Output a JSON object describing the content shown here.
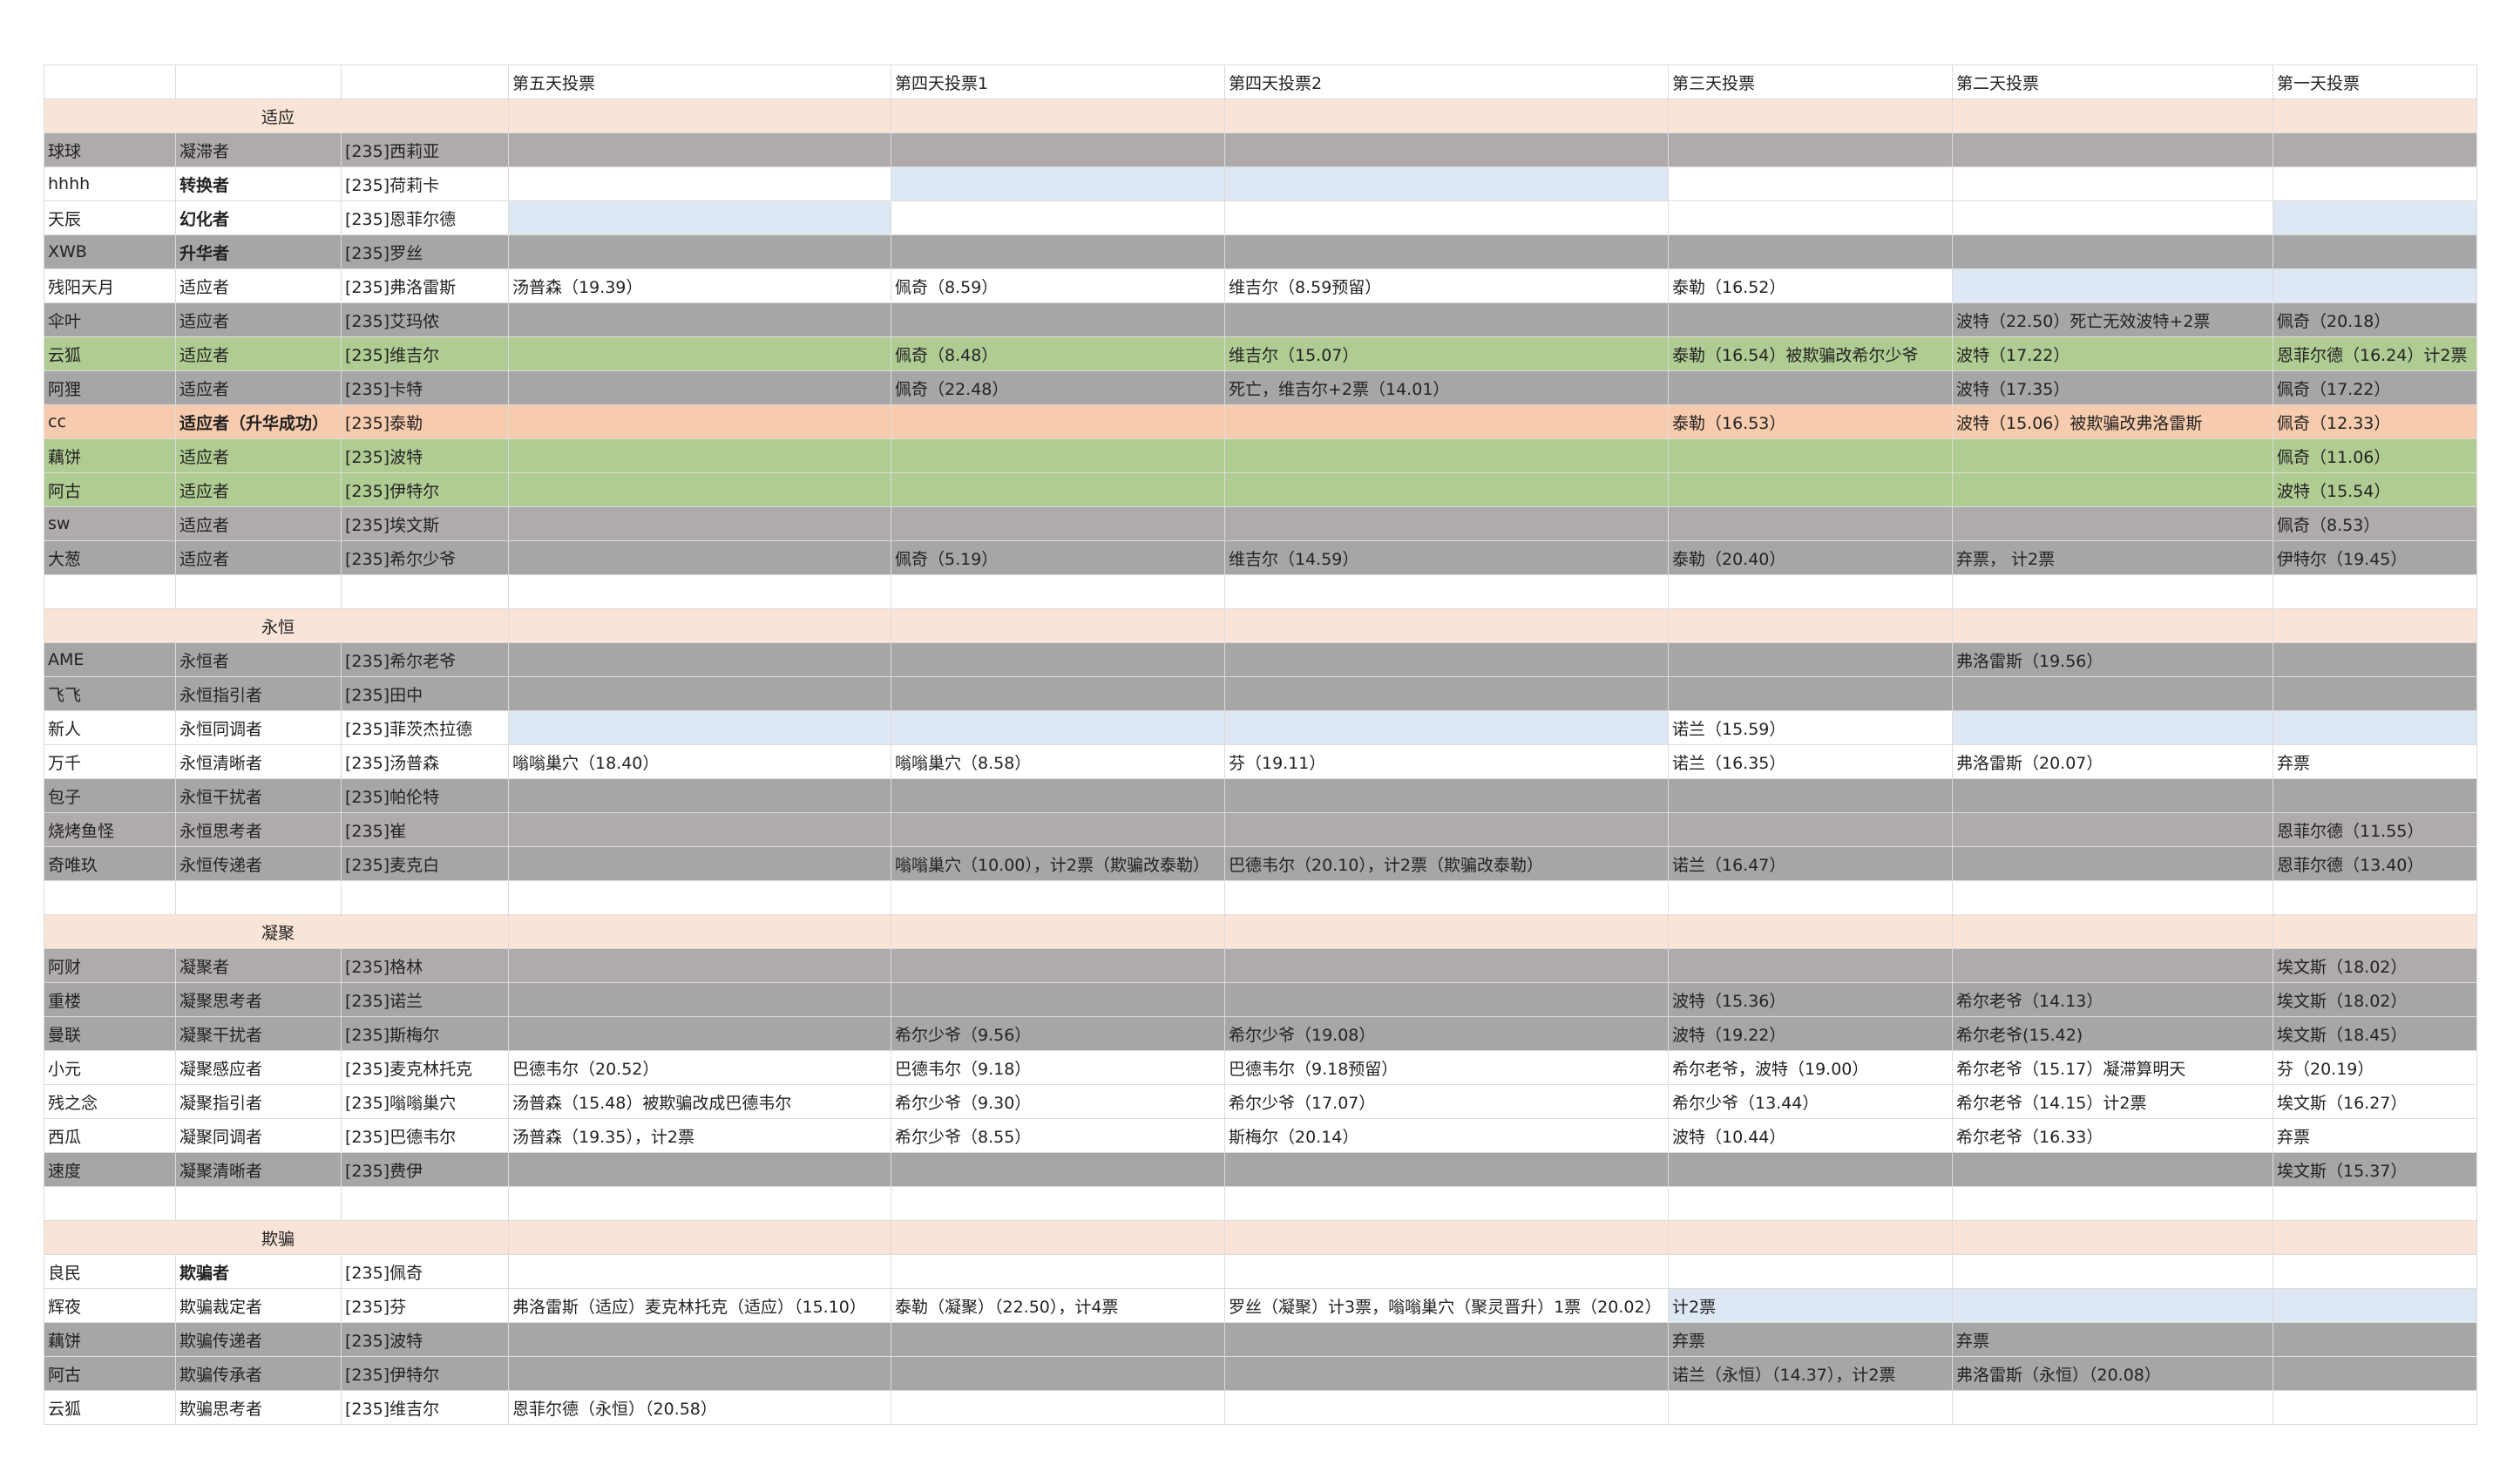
{
  "palette": {
    "white": "#ffffff",
    "section": "#fae4d7",
    "warmgray": "#afabaa",
    "gray": "#a6a6a6",
    "green": "#b0cc93",
    "orange": "#f7cbad",
    "highlight": "#dde8f4"
  },
  "header": [
    "",
    "",
    "",
    "第五天投票",
    "第四天投票1",
    "第四天投票2",
    "第三天投票",
    "第二天投票",
    "第一天投票"
  ],
  "sections": [
    {
      "title": "适应",
      "rows": [
        {
          "bg": "warmgray",
          "cells": [
            "球球",
            "凝滞者",
            "[235]西莉亚",
            "",
            "",
            "",
            "",
            "",
            ""
          ]
        },
        {
          "bg": "white",
          "bold": true,
          "hl": [
            4,
            5
          ],
          "cells": [
            "hhhh",
            "转换者",
            "[235]荷莉卡",
            "",
            "",
            "",
            "",
            "",
            ""
          ]
        },
        {
          "bg": "white",
          "bold": true,
          "hl": [
            3,
            8
          ],
          "cells": [
            "天辰",
            "幻化者",
            "[235]恩菲尔德",
            "",
            "",
            "",
            "",
            "",
            ""
          ]
        },
        {
          "bg": "gray",
          "bold": true,
          "cells": [
            "XWB",
            "升华者",
            "[235]罗丝",
            "",
            "",
            "",
            "",
            "",
            ""
          ]
        },
        {
          "bg": "white",
          "hl": [
            7,
            8
          ],
          "cells": [
            "残阳天月",
            "适应者",
            "[235]弗洛雷斯",
            "汤普森（19.39）",
            "佩奇（8.59）",
            "维吉尔（8.59预留）",
            "泰勒（16.52）",
            "",
            ""
          ]
        },
        {
          "bg": "gray",
          "cells": [
            "伞叶",
            "适应者",
            "[235]艾玛侬",
            "",
            "",
            "",
            "",
            "波特（22.50）死亡无效波特+2票",
            "佩奇（20.18）"
          ]
        },
        {
          "bg": "green",
          "cells": [
            "云狐",
            "适应者",
            "[235]维吉尔",
            "",
            "佩奇（8.48）",
            "维吉尔（15.07）",
            "泰勒（16.54）被欺骗改希尔少爷",
            "波特（17.22）",
            "恩菲尔德（16.24）计2票"
          ]
        },
        {
          "bg": "gray",
          "cells": [
            "阿狸",
            "适应者",
            "[235]卡特",
            "",
            "佩奇（22.48）",
            "死亡，维吉尔+2票（14.01）",
            "",
            "波特（17.35）",
            "佩奇（17.22）"
          ]
        },
        {
          "bg": "orange",
          "bold": true,
          "cells": [
            "cc",
            "适应者（升华成功）",
            "[235]泰勒",
            "",
            "",
            "",
            "泰勒（16.53）",
            "波特（15.06）被欺骗改弗洛雷斯",
            "佩奇（12.33）"
          ]
        },
        {
          "bg": "green",
          "cells": [
            "藕饼",
            "适应者",
            "[235]波特",
            "",
            "",
            "",
            "",
            "",
            "佩奇（11.06）"
          ]
        },
        {
          "bg": "green",
          "cells": [
            "阿古",
            "适应者",
            "[235]伊特尔",
            "",
            "",
            "",
            "",
            "",
            "波特（15.54）"
          ]
        },
        {
          "bg": "warmgray",
          "cells": [
            "sw",
            "适应者",
            "[235]埃文斯",
            "",
            "",
            "",
            "",
            "",
            "佩奇（8.53）"
          ]
        },
        {
          "bg": "gray",
          "cells": [
            "大葱",
            "适应者",
            "[235]希尔少爷",
            "",
            "佩奇（5.19）",
            "维吉尔（14.59）",
            "泰勒（20.40）",
            "弃票，  计2票",
            "伊特尔（19.45）"
          ]
        }
      ]
    },
    {
      "title": "永恒",
      "rows": [
        {
          "bg": "gray",
          "cells": [
            "AME",
            "永恒者",
            "[235]希尔老爷",
            "",
            "",
            "",
            "",
            "弗洛雷斯（19.56）",
            ""
          ]
        },
        {
          "bg": "gray",
          "cells": [
            "飞飞",
            "永恒指引者",
            "[235]田中",
            "",
            "",
            "",
            "",
            "",
            ""
          ]
        },
        {
          "bg": "white",
          "hl": [
            3,
            4,
            5,
            7,
            8
          ],
          "cells": [
            "新人",
            "永恒同调者",
            "[235]菲茨杰拉德",
            "",
            "",
            "",
            "诺兰（15.59）",
            "",
            ""
          ]
        },
        {
          "bg": "white",
          "cells": [
            "万千",
            "永恒清晰者",
            "[235]汤普森",
            "嗡嗡巢穴（18.40）",
            "嗡嗡巢穴（8.58）",
            "芬（19.11）",
            "诺兰（16.35）",
            "弗洛雷斯（20.07）",
            "弃票"
          ]
        },
        {
          "bg": "gray",
          "cells": [
            "包子",
            "永恒干扰者",
            "[235]帕伦特",
            "",
            "",
            "",
            "",
            "",
            ""
          ]
        },
        {
          "bg": "warmgray",
          "cells": [
            "烧烤鱼怪",
            "永恒思考者",
            "[235]崔",
            "",
            "",
            "",
            "",
            "",
            "恩菲尔德（11.55）"
          ]
        },
        {
          "bg": "gray",
          "cells": [
            "奇唯玖",
            "永恒传递者",
            "[235]麦克白",
            "",
            "嗡嗡巢穴（10.00），计2票（欺骗改泰勒）",
            "巴德韦尔（20.10），计2票（欺骗改泰勒）",
            "诺兰（16.47）",
            "",
            "恩菲尔德（13.40）"
          ]
        }
      ]
    },
    {
      "title": "凝聚",
      "rows": [
        {
          "bg": "warmgray",
          "cells": [
            "阿财",
            "凝聚者",
            "[235]格林",
            "",
            "",
            "",
            "",
            "",
            "埃文斯（18.02）"
          ]
        },
        {
          "bg": "gray",
          "cells": [
            "重楼",
            "凝聚思考者",
            "[235]诺兰",
            "",
            "",
            "",
            "波特（15.36）",
            "希尔老爷（14.13）",
            "埃文斯（18.02）"
          ]
        },
        {
          "bg": "gray",
          "cells": [
            "曼联",
            "凝聚干扰者",
            "[235]斯梅尔",
            "",
            "希尔少爷（9.56）",
            "希尔少爷（19.08）",
            "波特（19.22）",
            "希尔老爷(15.42)",
            "埃文斯（18.45）"
          ]
        },
        {
          "bg": "white",
          "cells": [
            "小元",
            "凝聚感应者",
            "[235]麦克林托克",
            "巴德韦尔（20.52）",
            "巴德韦尔（9.18）",
            "巴德韦尔（9.18预留）",
            "希尔老爷，波特（19.00）",
            "希尔老爷（15.17）凝滞算明天",
            "芬（20.19）"
          ]
        },
        {
          "bg": "white",
          "cells": [
            "残之念",
            "凝聚指引者",
            "[235]嗡嗡巢穴",
            "汤普森（15.48）被欺骗改成巴德韦尔",
            "希尔少爷（9.30）",
            "希尔少爷（17.07）",
            "希尔少爷（13.44）",
            "希尔老爷（14.15）计2票",
            "埃文斯（16.27）"
          ]
        },
        {
          "bg": "white",
          "cells": [
            "西瓜",
            "凝聚同调者",
            "[235]巴德韦尔",
            "汤普森（19.35），计2票",
            "希尔少爷（8.55）",
            "斯梅尔（20.14）",
            "波特（10.44）",
            "希尔老爷（16.33）",
            "弃票"
          ]
        },
        {
          "bg": "gray",
          "cells": [
            "速度",
            "凝聚清晰者",
            "[235]费伊",
            "",
            "",
            "",
            "",
            "",
            "埃文斯（15.37）"
          ]
        }
      ]
    },
    {
      "title": "欺骗",
      "rows": [
        {
          "bg": "white",
          "bold": true,
          "cells": [
            "良民",
            "欺骗者",
            "[235]佩奇",
            "",
            "",
            "",
            "",
            "",
            ""
          ]
        },
        {
          "bg": "white",
          "hl": [
            6,
            7,
            8
          ],
          "cells": [
            "辉夜",
            "欺骗裁定者",
            "[235]芬",
            "弗洛雷斯（适应）麦克林托克（适应）（15.10）",
            "泰勒（凝聚）（22.50），计4票",
            "罗丝（凝聚）计3票，嗡嗡巢穴（聚灵晋升）1票（20.02）",
            "计2票",
            "",
            ""
          ]
        },
        {
          "bg": "gray",
          "cells": [
            "藕饼",
            "欺骗传递者",
            "[235]波特",
            "",
            "",
            "",
            "弃票",
            "弃票",
            ""
          ]
        },
        {
          "bg": "gray",
          "cells": [
            "阿古",
            "欺骗传承者",
            "[235]伊特尔",
            "",
            "",
            "",
            "诺兰（永恒）（14.37），计2票",
            "弗洛雷斯（永恒）（20.08）",
            ""
          ]
        },
        {
          "bg": "white",
          "cells": [
            "云狐",
            "欺骗思考者",
            "[235]维吉尔",
            "恩菲尔德（永恒）（20.58）",
            "",
            "",
            "",
            "",
            ""
          ]
        }
      ]
    }
  ]
}
